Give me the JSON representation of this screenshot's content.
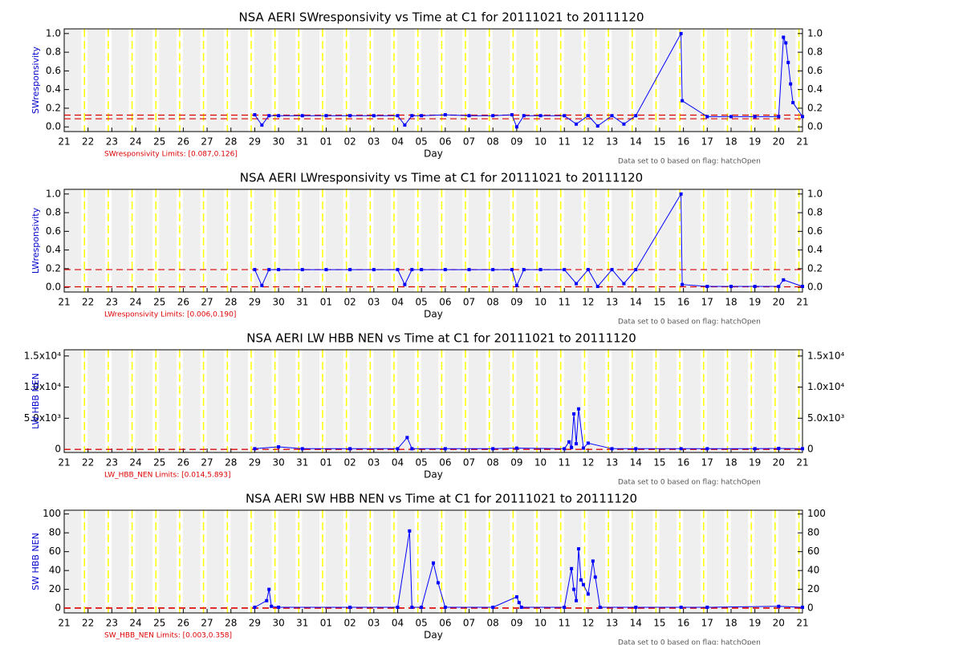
{
  "chart_data": [
    {
      "type": "scatter",
      "title": "NSA AERI SWresponsivity vs Time at C1 for 20111021 to 20111120",
      "xlabel": "Day",
      "ylabel": "SWresponsivity",
      "limits": [
        0.087,
        0.126
      ],
      "limits_label": "SWresponsivity Limits: [0.087,0.126]",
      "limits_color": "#dd0000",
      "note": "Data set to 0 based on flag: hatchOpen",
      "xlim": [
        0,
        31
      ],
      "ylim": [
        -0.05,
        1.05
      ],
      "xticks": [
        {
          "value": 0,
          "label": "21"
        },
        {
          "value": 1,
          "label": "22"
        },
        {
          "value": 2,
          "label": "23"
        },
        {
          "value": 3,
          "label": "24"
        },
        {
          "value": 4,
          "label": "25"
        },
        {
          "value": 5,
          "label": "26"
        },
        {
          "value": 6,
          "label": "27"
        },
        {
          "value": 7,
          "label": "28"
        },
        {
          "value": 8,
          "label": "29"
        },
        {
          "value": 9,
          "label": "30"
        },
        {
          "value": 10,
          "label": "31"
        },
        {
          "value": 11,
          "label": "01"
        },
        {
          "value": 12,
          "label": "02"
        },
        {
          "value": 13,
          "label": "03"
        },
        {
          "value": 14,
          "label": "04"
        },
        {
          "value": 15,
          "label": "05"
        },
        {
          "value": 16,
          "label": "06"
        },
        {
          "value": 17,
          "label": "07"
        },
        {
          "value": 18,
          "label": "08"
        },
        {
          "value": 19,
          "label": "09"
        },
        {
          "value": 20,
          "label": "10"
        },
        {
          "value": 21,
          "label": "11"
        },
        {
          "value": 22,
          "label": "12"
        },
        {
          "value": 23,
          "label": "13"
        },
        {
          "value": 24,
          "label": "14"
        },
        {
          "value": 25,
          "label": "15"
        },
        {
          "value": 26,
          "label": "16"
        },
        {
          "value": 27,
          "label": "17"
        },
        {
          "value": 28,
          "label": "18"
        },
        {
          "value": 29,
          "label": "19"
        },
        {
          "value": 30,
          "label": "20"
        },
        {
          "value": 31,
          "label": "21"
        }
      ],
      "yticks": [
        {
          "value": 0,
          "label": "0.0"
        },
        {
          "value": 0.2,
          "label": "0.2"
        },
        {
          "value": 0.4,
          "label": "0.4"
        },
        {
          "value": 0.6,
          "label": "0.6"
        },
        {
          "value": 0.8,
          "label": "0.8"
        },
        {
          "value": 1,
          "label": "1.0"
        }
      ],
      "series": [
        {
          "color": "#0000ff",
          "x": [
            8.0,
            8.3,
            8.6,
            9.0,
            10.0,
            11.0,
            12.0,
            13.0,
            14.0,
            14.3,
            14.6,
            15.0,
            16.0,
            17.0,
            18.0,
            18.8,
            19.0,
            19.3,
            20.0,
            21.0,
            21.5,
            22.0,
            22.4,
            23.0,
            23.5,
            24.0,
            25.9,
            25.95,
            27.0,
            28.0,
            29.0,
            30.0,
            30.2,
            30.3,
            30.4,
            30.5,
            30.6,
            31.0
          ],
          "values": [
            0.13,
            0.02,
            0.12,
            0.12,
            0.12,
            0.12,
            0.12,
            0.12,
            0.12,
            0.02,
            0.12,
            0.12,
            0.13,
            0.12,
            0.12,
            0.13,
            0.0,
            0.12,
            0.12,
            0.12,
            0.03,
            0.12,
            0.01,
            0.12,
            0.03,
            0.12,
            1.0,
            0.28,
            0.11,
            0.11,
            0.11,
            0.11,
            0.96,
            0.9,
            0.69,
            0.46,
            0.26,
            0.11
          ]
        }
      ]
    },
    {
      "type": "scatter",
      "title": "NSA AERI LWresponsivity vs Time at C1 for 20111021 to 20111120",
      "xlabel": "Day",
      "ylabel": "LWresponsivity",
      "limits": [
        0.006,
        0.19
      ],
      "limits_label": "LWresponsivity Limits: [0.006,0.190]",
      "limits_color": "#dd0000",
      "note": "Data set to 0 based on flag: hatchOpen",
      "xlim": [
        0,
        31
      ],
      "ylim": [
        -0.05,
        1.05
      ],
      "xticks": [
        {
          "value": 0,
          "label": "21"
        },
        {
          "value": 1,
          "label": "22"
        },
        {
          "value": 2,
          "label": "23"
        },
        {
          "value": 3,
          "label": "24"
        },
        {
          "value": 4,
          "label": "25"
        },
        {
          "value": 5,
          "label": "26"
        },
        {
          "value": 6,
          "label": "27"
        },
        {
          "value": 7,
          "label": "28"
        },
        {
          "value": 8,
          "label": "29"
        },
        {
          "value": 9,
          "label": "30"
        },
        {
          "value": 10,
          "label": "31"
        },
        {
          "value": 11,
          "label": "01"
        },
        {
          "value": 12,
          "label": "02"
        },
        {
          "value": 13,
          "label": "03"
        },
        {
          "value": 14,
          "label": "04"
        },
        {
          "value": 15,
          "label": "05"
        },
        {
          "value": 16,
          "label": "06"
        },
        {
          "value": 17,
          "label": "07"
        },
        {
          "value": 18,
          "label": "08"
        },
        {
          "value": 19,
          "label": "09"
        },
        {
          "value": 20,
          "label": "10"
        },
        {
          "value": 21,
          "label": "11"
        },
        {
          "value": 22,
          "label": "12"
        },
        {
          "value": 23,
          "label": "13"
        },
        {
          "value": 24,
          "label": "14"
        },
        {
          "value": 25,
          "label": "15"
        },
        {
          "value": 26,
          "label": "16"
        },
        {
          "value": 27,
          "label": "17"
        },
        {
          "value": 28,
          "label": "18"
        },
        {
          "value": 29,
          "label": "19"
        },
        {
          "value": 30,
          "label": "20"
        },
        {
          "value": 31,
          "label": "21"
        }
      ],
      "yticks": [
        {
          "value": 0,
          "label": "0.0"
        },
        {
          "value": 0.2,
          "label": "0.2"
        },
        {
          "value": 0.4,
          "label": "0.4"
        },
        {
          "value": 0.6,
          "label": "0.6"
        },
        {
          "value": 0.8,
          "label": "0.8"
        },
        {
          "value": 1,
          "label": "1.0"
        }
      ],
      "series": [
        {
          "color": "#0000ff",
          "x": [
            8.0,
            8.3,
            8.6,
            9.0,
            10.0,
            11.0,
            12.0,
            13.0,
            14.0,
            14.3,
            14.6,
            15.0,
            16.0,
            17.0,
            18.0,
            18.8,
            19.0,
            19.3,
            20.0,
            21.0,
            21.5,
            22.0,
            22.4,
            23.0,
            23.5,
            24.0,
            25.9,
            25.95,
            27.0,
            28.0,
            29.0,
            30.0,
            30.2,
            31.0
          ],
          "values": [
            0.19,
            0.02,
            0.19,
            0.19,
            0.19,
            0.19,
            0.19,
            0.19,
            0.19,
            0.03,
            0.19,
            0.19,
            0.19,
            0.19,
            0.19,
            0.19,
            0.02,
            0.19,
            0.19,
            0.19,
            0.04,
            0.19,
            0.01,
            0.19,
            0.04,
            0.19,
            1.0,
            0.03,
            0.01,
            0.01,
            0.01,
            0.01,
            0.08,
            0.01
          ]
        }
      ]
    },
    {
      "type": "scatter",
      "title": "NSA AERI LW HBB NEN vs Time at C1 for 20111021 to 20111120",
      "xlabel": "Day",
      "ylabel": "LW HBB NEN",
      "limits": [
        0.014,
        5.893
      ],
      "limits_label": "LW_HBB_NEN Limits: [0.014,5.893]",
      "limits_color": "#dd0000",
      "note": "Data set to 0 based on flag: hatchOpen",
      "xlim": [
        0,
        31
      ],
      "ylim": [
        -500,
        16000
      ],
      "xticks": [
        {
          "value": 0,
          "label": "21"
        },
        {
          "value": 1,
          "label": "22"
        },
        {
          "value": 2,
          "label": "23"
        },
        {
          "value": 3,
          "label": "24"
        },
        {
          "value": 4,
          "label": "25"
        },
        {
          "value": 5,
          "label": "26"
        },
        {
          "value": 6,
          "label": "27"
        },
        {
          "value": 7,
          "label": "28"
        },
        {
          "value": 8,
          "label": "29"
        },
        {
          "value": 9,
          "label": "30"
        },
        {
          "value": 10,
          "label": "31"
        },
        {
          "value": 11,
          "label": "01"
        },
        {
          "value": 12,
          "label": "02"
        },
        {
          "value": 13,
          "label": "03"
        },
        {
          "value": 14,
          "label": "04"
        },
        {
          "value": 15,
          "label": "05"
        },
        {
          "value": 16,
          "label": "06"
        },
        {
          "value": 17,
          "label": "07"
        },
        {
          "value": 18,
          "label": "08"
        },
        {
          "value": 19,
          "label": "09"
        },
        {
          "value": 20,
          "label": "10"
        },
        {
          "value": 21,
          "label": "11"
        },
        {
          "value": 22,
          "label": "12"
        },
        {
          "value": 23,
          "label": "13"
        },
        {
          "value": 24,
          "label": "14"
        },
        {
          "value": 25,
          "label": "15"
        },
        {
          "value": 26,
          "label": "16"
        },
        {
          "value": 27,
          "label": "17"
        },
        {
          "value": 28,
          "label": "18"
        },
        {
          "value": 29,
          "label": "19"
        },
        {
          "value": 30,
          "label": "20"
        },
        {
          "value": 31,
          "label": "21"
        }
      ],
      "yticks": [
        0,
        {
          "value": 5000,
          "label": "5.0x10³"
        },
        {
          "value": 10000,
          "label": "1.0x10⁴"
        },
        {
          "value": 15000,
          "label": "1.5x10⁴"
        }
      ],
      "series": [
        {
          "color": "#0000ff",
          "x": [
            8.0,
            9.0,
            10.0,
            12.0,
            14.0,
            14.4,
            14.6,
            16.0,
            18.0,
            19.0,
            21.0,
            21.2,
            21.3,
            21.4,
            21.5,
            21.6,
            21.8,
            22.0,
            23.0,
            24.0,
            25.9,
            27.0,
            29.0,
            30.0,
            31.0
          ],
          "values": [
            100,
            400,
            100,
            100,
            100,
            1900,
            100,
            100,
            100,
            200,
            100,
            1200,
            300,
            5700,
            900,
            6500,
            200,
            1000,
            100,
            100,
            100,
            100,
            100,
            150,
            100
          ]
        }
      ]
    },
    {
      "type": "scatter",
      "title": "NSA AERI SW HBB NEN vs Time at C1 for 20111021 to 20111120",
      "xlabel": "Day",
      "ylabel": "SW HBB NEN",
      "limits": [
        0.003,
        0.358
      ],
      "limits_label": "SW_HBB_NEN Limits: [0.003,0.358]",
      "limits_color": "#dd0000",
      "note": "Data set to 0 based on flag: hatchOpen",
      "xlim": [
        0,
        31
      ],
      "ylim": [
        -5,
        104
      ],
      "xticks": [
        {
          "value": 0,
          "label": "21"
        },
        {
          "value": 1,
          "label": "22"
        },
        {
          "value": 2,
          "label": "23"
        },
        {
          "value": 3,
          "label": "24"
        },
        {
          "value": 4,
          "label": "25"
        },
        {
          "value": 5,
          "label": "26"
        },
        {
          "value": 6,
          "label": "27"
        },
        {
          "value": 7,
          "label": "28"
        },
        {
          "value": 8,
          "label": "29"
        },
        {
          "value": 9,
          "label": "30"
        },
        {
          "value": 10,
          "label": "31"
        },
        {
          "value": 11,
          "label": "01"
        },
        {
          "value": 12,
          "label": "02"
        },
        {
          "value": 13,
          "label": "03"
        },
        {
          "value": 14,
          "label": "04"
        },
        {
          "value": 15,
          "label": "05"
        },
        {
          "value": 16,
          "label": "06"
        },
        {
          "value": 17,
          "label": "07"
        },
        {
          "value": 18,
          "label": "08"
        },
        {
          "value": 19,
          "label": "09"
        },
        {
          "value": 20,
          "label": "10"
        },
        {
          "value": 21,
          "label": "11"
        },
        {
          "value": 22,
          "label": "12"
        },
        {
          "value": 23,
          "label": "13"
        },
        {
          "value": 24,
          "label": "14"
        },
        {
          "value": 25,
          "label": "15"
        },
        {
          "value": 26,
          "label": "16"
        },
        {
          "value": 27,
          "label": "17"
        },
        {
          "value": 28,
          "label": "18"
        },
        {
          "value": 29,
          "label": "19"
        },
        {
          "value": 30,
          "label": "20"
        },
        {
          "value": 31,
          "label": "21"
        }
      ],
      "yticks": [
        0,
        20,
        40,
        60,
        80,
        100
      ],
      "series": [
        {
          "color": "#0000ff",
          "x": [
            8.0,
            8.5,
            8.6,
            8.7,
            9.0,
            12.0,
            14.0,
            14.5,
            14.6,
            15.0,
            15.5,
            15.7,
            16.0,
            18.0,
            19.0,
            19.1,
            19.2,
            21.0,
            21.3,
            21.4,
            21.5,
            21.6,
            21.7,
            21.8,
            22.0,
            22.2,
            22.3,
            22.5,
            24.0,
            25.9,
            27.0,
            30.0,
            31.0
          ],
          "values": [
            1,
            8,
            20,
            2,
            1,
            1,
            1,
            82,
            1,
            1,
            48,
            27,
            1,
            1,
            12,
            6,
            1,
            1,
            42,
            20,
            8,
            63,
            30,
            25,
            15,
            50,
            33,
            1,
            1,
            1,
            1,
            2,
            1
          ]
        }
      ]
    }
  ]
}
